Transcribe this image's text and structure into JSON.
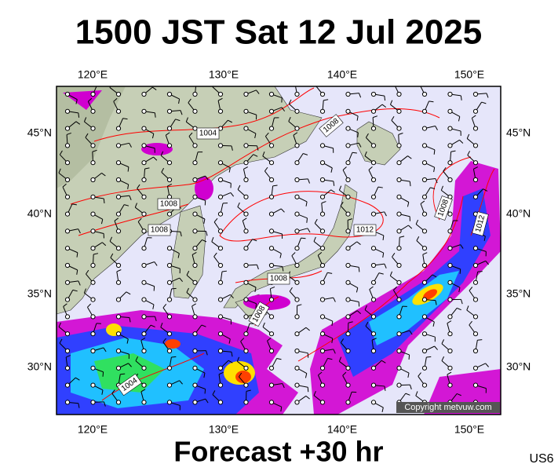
{
  "title": "1500 JST Sat 12 Jul 2025",
  "lon_labels": [
    "120°E",
    "130°E",
    "140°E",
    "150°E"
  ],
  "lat_labels": [
    "45°N",
    "40°N",
    "35°N",
    "30°N"
  ],
  "isobar_labels": [
    "1004",
    "1008",
    "1008",
    "1008",
    "1012",
    "1008",
    "1008",
    "1004",
    "1008",
    "1012"
  ],
  "copyright": "Copyright metvuw.com",
  "footer": {
    "forecast": "Forecast +30 hr",
    "code": "US6"
  }
}
